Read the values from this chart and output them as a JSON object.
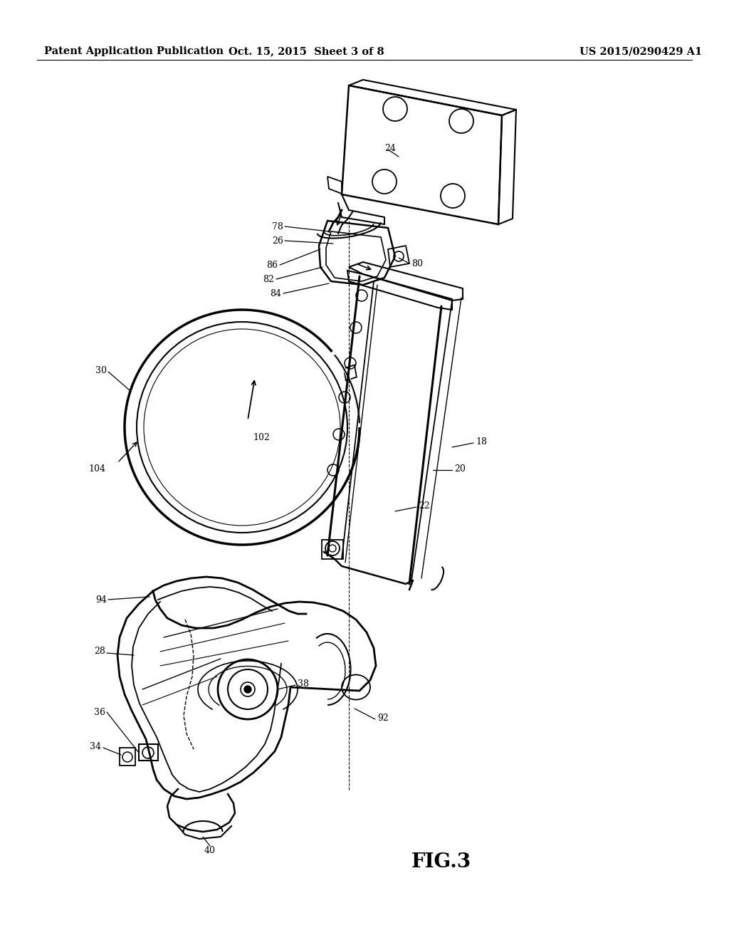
{
  "header_left": "Patent Application Publication",
  "header_center": "Oct. 15, 2015  Sheet 3 of 8",
  "header_right": "US 2015/0290429 A1",
  "figure_label": "FIG.3",
  "background_color": "#ffffff",
  "line_color": "#000000",
  "header_fontsize": 10.5,
  "figure_label_fontsize": 20,
  "label_fontsize": 9,
  "dpi": 100,
  "fig_w": 10.24,
  "fig_h": 13.2
}
